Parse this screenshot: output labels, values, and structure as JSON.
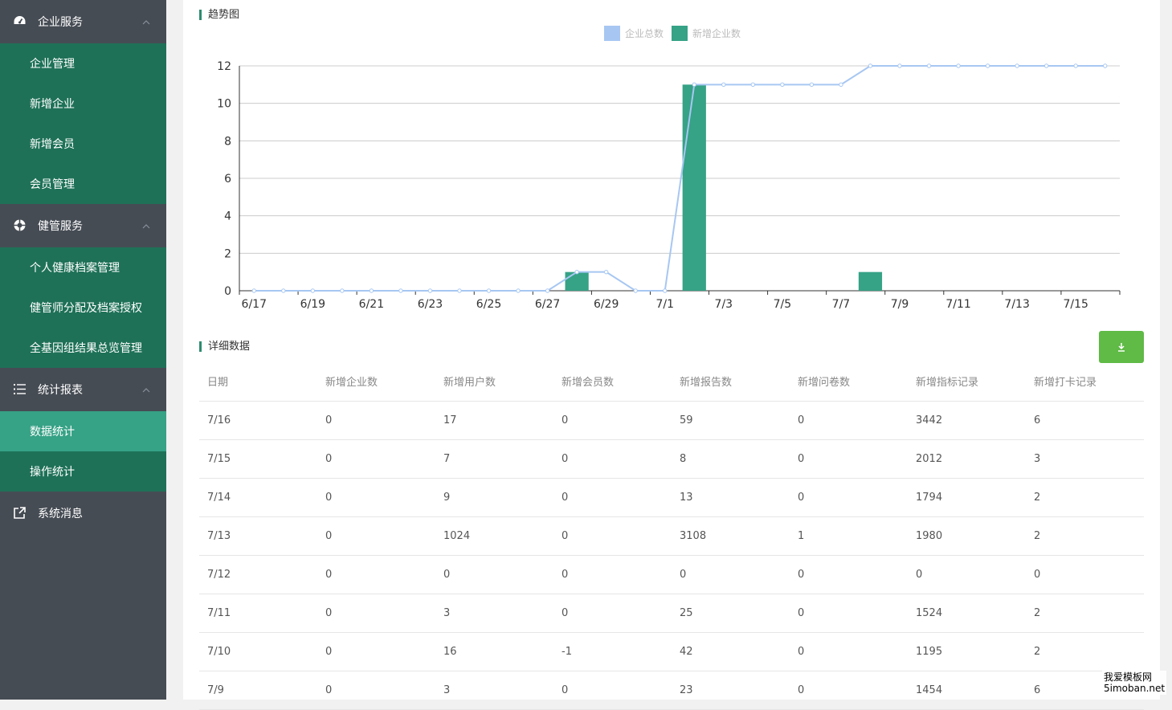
{
  "sidebar": {
    "groups": [
      {
        "label": "企业服务",
        "icon": "dashboard-icon",
        "items": [
          "企业管理",
          "新增企业",
          "新增会员",
          "会员管理"
        ]
      },
      {
        "label": "健管服务",
        "icon": "lifebuoy-icon",
        "items": [
          "个人健康档案管理",
          "健管师分配及档案授权",
          "全基因组结果总览管理"
        ]
      },
      {
        "label": "统计报表",
        "icon": "list-icon",
        "items": [
          "数据统计",
          "操作统计"
        ],
        "active_item": "数据统计"
      },
      {
        "label": "系统消息",
        "icon": "external-link-icon",
        "items": []
      }
    ]
  },
  "trend": {
    "title": "趋势图"
  },
  "chart_data": {
    "type": "bar",
    "categories": [
      "6/17",
      "6/18",
      "6/19",
      "6/20",
      "6/21",
      "6/22",
      "6/23",
      "6/24",
      "6/25",
      "6/26",
      "6/27",
      "6/28",
      "6/29",
      "6/30",
      "7/1",
      "7/2",
      "7/3",
      "7/4",
      "7/5",
      "7/6",
      "7/7",
      "7/8",
      "7/9",
      "7/10",
      "7/11",
      "7/12",
      "7/13",
      "7/14",
      "7/15",
      "7/16"
    ],
    "tick_labels": [
      "6/17",
      "6/19",
      "6/21",
      "6/23",
      "6/25",
      "6/27",
      "6/29",
      "7/1",
      "7/3",
      "7/5",
      "7/7",
      "7/9",
      "7/11",
      "7/13",
      "7/15"
    ],
    "series": [
      {
        "name": "企业总数",
        "type": "line",
        "color": "#a7c7f2",
        "values": [
          0,
          0,
          0,
          0,
          0,
          0,
          0,
          0,
          0,
          0,
          0,
          1,
          1,
          0,
          0,
          11,
          11,
          11,
          11,
          11,
          11,
          12,
          12,
          12,
          12,
          12,
          12,
          12,
          12,
          12
        ]
      },
      {
        "name": "新增企业数",
        "type": "bar",
        "color": "#36a286",
        "values": [
          0,
          0,
          0,
          0,
          0,
          0,
          0,
          0,
          0,
          0,
          0,
          1,
          0,
          0,
          0,
          11,
          0,
          0,
          0,
          0,
          0,
          1,
          0,
          0,
          0,
          0,
          0,
          0,
          0,
          0
        ]
      }
    ],
    "ylim": [
      0,
      12
    ],
    "yticks": [
      0,
      2,
      4,
      6,
      8,
      10,
      12
    ],
    "grid": true,
    "legend": "top-center"
  },
  "details": {
    "title": "详细数据",
    "download_icon": "download-icon",
    "columns": [
      "日期",
      "新增企业数",
      "新增用户数",
      "新增会员数",
      "新增报告数",
      "新增问卷数",
      "新增指标记录",
      "新增打卡记录"
    ],
    "rows": [
      [
        "7/16",
        "0",
        "17",
        "0",
        "59",
        "0",
        "3442",
        "6"
      ],
      [
        "7/15",
        "0",
        "7",
        "0",
        "8",
        "0",
        "2012",
        "3"
      ],
      [
        "7/14",
        "0",
        "9",
        "0",
        "13",
        "0",
        "1794",
        "2"
      ],
      [
        "7/13",
        "0",
        "1024",
        "0",
        "3108",
        "1",
        "1980",
        "2"
      ],
      [
        "7/12",
        "0",
        "0",
        "0",
        "0",
        "0",
        "0",
        "0"
      ],
      [
        "7/11",
        "0",
        "3",
        "0",
        "25",
        "0",
        "1524",
        "2"
      ],
      [
        "7/10",
        "0",
        "16",
        "-1",
        "42",
        "0",
        "1195",
        "2"
      ],
      [
        "7/9",
        "0",
        "3",
        "0",
        "23",
        "0",
        "1454",
        "6"
      ]
    ]
  },
  "watermark": {
    "line1": "我爱模板网",
    "line2": "5imoban.net"
  }
}
